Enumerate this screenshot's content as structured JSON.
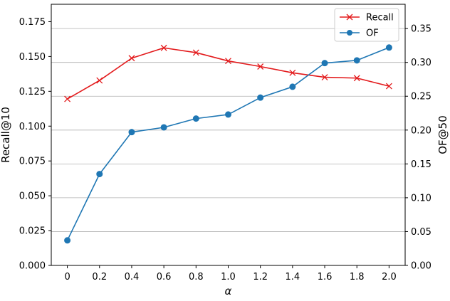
{
  "chart_data": {
    "type": "line",
    "xlabel": "α",
    "ylabel_left": "Recall@10",
    "ylabel_right": "OF@50",
    "x": [
      0,
      0.2,
      0.4,
      0.6,
      0.8,
      1.0,
      1.2,
      1.4,
      1.6,
      1.8,
      2.0
    ],
    "x_tick_labels": [
      "0",
      "0.2",
      "0.4",
      "0.6",
      "0.8",
      "1.0",
      "1.2",
      "1.4",
      "1.6",
      "1.8",
      "2.0"
    ],
    "xlim": [
      -0.1,
      2.1
    ],
    "ylim_left": [
      0,
      0.1875
    ],
    "ylim_right": [
      0,
      0.3859
    ],
    "y_left_ticks": [
      0.0,
      0.025,
      0.05,
      0.075,
      0.1,
      0.125,
      0.15,
      0.175
    ],
    "y_left_tick_labels": [
      "0.000",
      "0.025",
      "0.050",
      "0.075",
      "0.100",
      "0.125",
      "0.150",
      "0.175"
    ],
    "y_right_ticks": [
      0.0,
      0.05,
      0.1,
      0.15,
      0.2,
      0.25,
      0.3,
      0.35
    ],
    "y_right_tick_labels": [
      "0.00",
      "0.05",
      "0.10",
      "0.15",
      "0.20",
      "0.25",
      "0.30",
      "0.35"
    ],
    "grid": "horizontal (right axis)",
    "legend_position": "top-right",
    "series": [
      {
        "name": "Recall",
        "axis": "left",
        "color": "#e31a1c",
        "marker": "x",
        "values": [
          0.1195,
          0.1328,
          0.1488,
          0.1562,
          0.1528,
          0.1468,
          0.1428,
          0.1383,
          0.1351,
          0.1345,
          0.1287
        ]
      },
      {
        "name": "OF",
        "axis": "right",
        "color": "#1f77b4",
        "marker": "circle",
        "values": [
          0.037,
          0.135,
          0.197,
          0.204,
          0.217,
          0.223,
          0.248,
          0.264,
          0.299,
          0.303,
          0.322
        ]
      }
    ]
  }
}
